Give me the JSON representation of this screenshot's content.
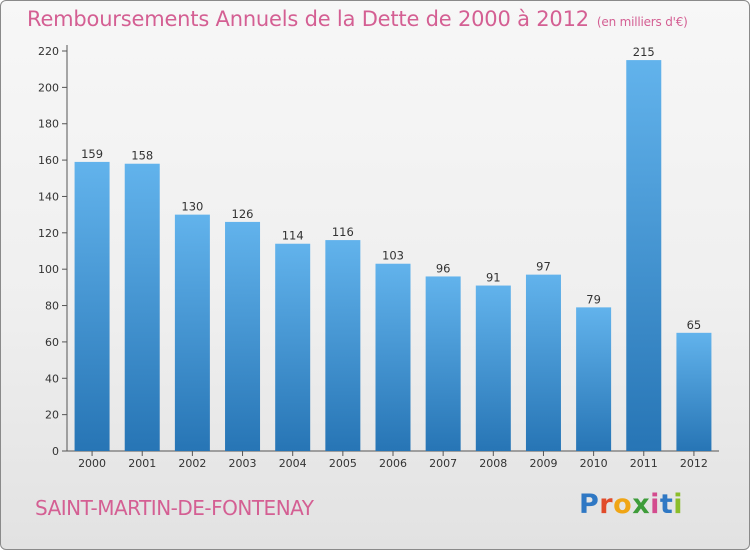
{
  "title": "Remboursements Annuels de la Dette de 2000 à 2012",
  "unit": "(en milliers d'€)",
  "commune": "SAINT-MARTIN-DE-FONTENAY",
  "logo": {
    "letters": [
      "P",
      "r",
      "o",
      "x",
      "i",
      "t",
      "i"
    ],
    "colors": [
      "#2f78c4",
      "#e14b2a",
      "#f0a515",
      "#3e9c3a",
      "#d34c8e",
      "#2f78c4",
      "#8bbd2a"
    ]
  },
  "colors": {
    "bar_light": "#62b3ec",
    "bar_dark": "#2775b5",
    "title": "#d45f93"
  },
  "chart_data": {
    "type": "bar",
    "title": "Remboursements Annuels de la Dette de 2000 à 2012",
    "xlabel": "",
    "ylabel": "",
    "categories": [
      "2000",
      "2001",
      "2002",
      "2003",
      "2004",
      "2005",
      "2006",
      "2007",
      "2008",
      "2009",
      "2010",
      "2011",
      "2012"
    ],
    "values": [
      159,
      158,
      130,
      126,
      114,
      116,
      103,
      96,
      91,
      97,
      79,
      215,
      65
    ],
    "ylim": [
      0,
      220
    ],
    "yticks": [
      0,
      20,
      40,
      60,
      80,
      100,
      120,
      140,
      160,
      180,
      200,
      220
    ],
    "grid": false
  }
}
